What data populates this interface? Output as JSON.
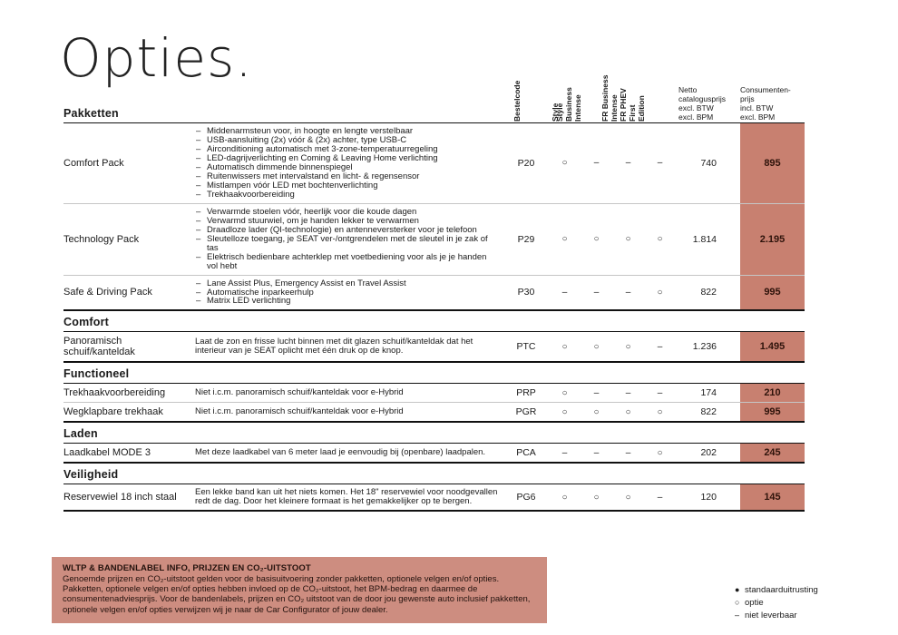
{
  "page": {
    "title": "Opties."
  },
  "table": {
    "bullet_marker": "–",
    "columns": {
      "bestelcode": "Bestelcode",
      "trims": [
        "Style",
        "Style\nBusiness\nIntense",
        "FR Business\nIntense",
        "FR PHEV\nFirst\nEdition"
      ],
      "netto": "Netto\ncatalogusprijs\nexcl. BTW\nexcl. BPM",
      "consument": "Consumenten-\nprijs\nincl. BTW\nexcl. BPM"
    },
    "sections": [
      {
        "title": "Pakketten",
        "rows": [
          {
            "name": "Comfort Pack",
            "bullets": [
              "Middenarmsteun voor, in hoogte en lengte verstelbaar",
              "USB-aansluiting (2x) vóór & (2x) achter, type USB-C",
              "Airconditioning automatisch met 3-zone-temperatuurregeling",
              "LED-dagrijverlichting en Coming & Leaving Home verlichting",
              "Automatisch dimmende binnenspiegel",
              "Ruitenwissers met intervalstand en licht- & regensensor",
              "Mistlampen vóór LED met bochtenverlichting",
              "Trekhaakvoorbereiding"
            ],
            "code": "P20",
            "availability": [
              "○",
              "–",
              "–",
              "–"
            ],
            "netto": "740",
            "consumer": "895"
          },
          {
            "name": "Technology Pack",
            "bullets": [
              "Verwarmde stoelen vóór, heerlijk voor die koude dagen",
              "Verwarmd stuurwiel, om je handen lekker te verwarmen",
              "Draadloze lader (QI-technologie) en antenneversterker voor je telefoon",
              "Sleutelloze toegang, je SEAT ver-/ontgrendelen met de sleutel in je zak of tas",
              "Elektrisch bedienbare achterklep met voetbediening voor als je je handen vol hebt"
            ],
            "code": "P29",
            "availability": [
              "○",
              "○",
              "○",
              "○"
            ],
            "netto": "1.814",
            "consumer": "2.195"
          },
          {
            "name": "Safe & Driving Pack",
            "bullets": [
              "Lane Assist Plus, Emergency Assist en Travel Assist",
              "Automatische inparkeerhulp",
              "Matrix LED verlichting"
            ],
            "code": "P30",
            "availability": [
              "–",
              "–",
              "–",
              "○"
            ],
            "netto": "822",
            "consumer": "995"
          }
        ]
      },
      {
        "title": "Comfort",
        "rows": [
          {
            "name": "Panoramisch schuif/kanteldak",
            "desc": "Laat de zon en frisse lucht binnen met dit glazen schuif/kanteldak dat het interieur van je SEAT oplicht met één druk op de knop.",
            "code": "PTC",
            "availability": [
              "○",
              "○",
              "○",
              "–"
            ],
            "netto": "1.236",
            "consumer": "1.495"
          }
        ]
      },
      {
        "title": "Functioneel",
        "rows": [
          {
            "name": "Trekhaakvoorbereiding",
            "desc": "Niet i.c.m. panoramisch schuif/kanteldak voor e-Hybrid",
            "code": "PRP",
            "availability": [
              "○",
              "–",
              "–",
              "–"
            ],
            "netto": "174",
            "consumer": "210"
          },
          {
            "name": "Wegklapbare trekhaak",
            "desc": "Niet i.c.m. panoramisch schuif/kanteldak voor e-Hybrid",
            "code": "PGR",
            "availability": [
              "○",
              "○",
              "○",
              "○"
            ],
            "netto": "822",
            "consumer": "995"
          }
        ]
      },
      {
        "title": "Laden",
        "rows": [
          {
            "name": "Laadkabel MODE 3",
            "desc": "Met deze laadkabel van 6 meter laad je eenvoudig bij (openbare) laadpalen.",
            "code": "PCA",
            "availability": [
              "–",
              "–",
              "–",
              "○"
            ],
            "netto": "202",
            "consumer": "245"
          }
        ]
      },
      {
        "title": "Veiligheid",
        "rows": [
          {
            "name": "Reservewiel 18 inch staal",
            "desc": "Een lekke band kan uit het niets komen. Het 18\" reservewiel voor noodgevallen redt de dag. Door het kleinere formaat is het gemakkelijker op te bergen.",
            "code": "PG6",
            "availability": [
              "○",
              "○",
              "○",
              "–"
            ],
            "netto": "120",
            "consumer": "145"
          }
        ]
      }
    ]
  },
  "footer": {
    "note_title": "WLTP & BANDENLABEL INFO, PRIJZEN EN CO₂-UITSTOOT",
    "note_body": "Genoemde prijzen en CO₂-uitstoot gelden voor de basisuitvoering zonder pakketten, optionele velgen en/of opties. Pakketten, optionele velgen en/of opties hebben invloed op de CO₂-uitstoot, het BPM-bedrag en daarmee de consumentenadviesprijs. Voor de bandenlabels, prijzen en CO₂ uitstoot van de door jou gewenste auto inclusief pakketten, optionele velgen en/of opties verwijzen wij je naar de Car Configurator of jouw dealer.",
    "legend": [
      {
        "symbol": "●",
        "label": "standaarduitrusting"
      },
      {
        "symbol": "○",
        "label": "optie"
      },
      {
        "symbol": "–",
        "label": "niet leverbaar"
      }
    ]
  }
}
